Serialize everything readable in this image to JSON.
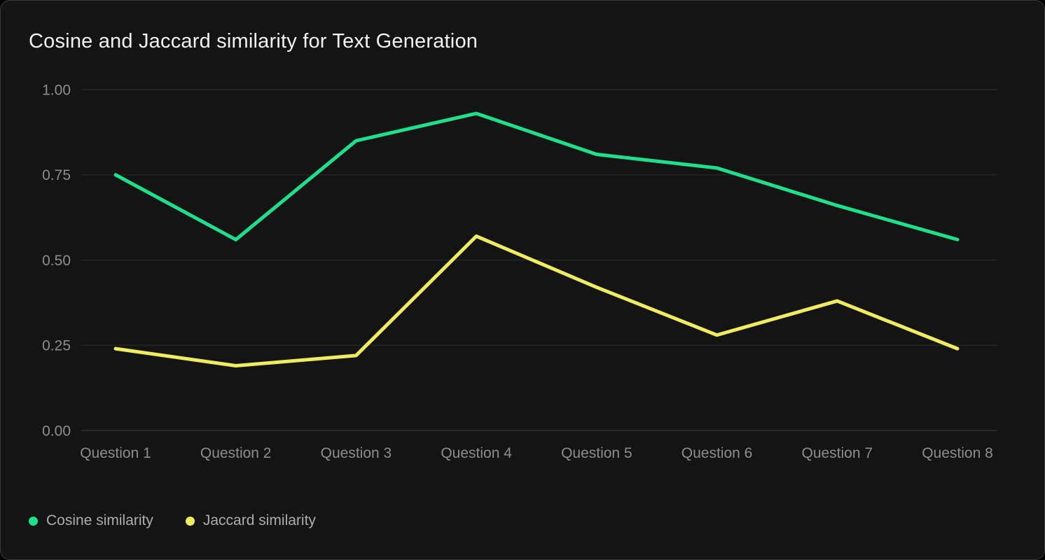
{
  "theme": {
    "page_background": "#000000",
    "card_background": "#141414",
    "card_border": "#3a3a3a",
    "title_color": "#f2f2f2",
    "axis_label_color": "#8d8d8d",
    "gridline_color": "#2b2b2b",
    "baseline_color": "#3f3f3f",
    "legend_text_color": "#adadad"
  },
  "chart_data": {
    "type": "line",
    "title": "Cosine and Jaccard similarity for Text Generation",
    "xlabel": "",
    "ylabel": "",
    "categories": [
      "Question 1",
      "Question 2",
      "Question 3",
      "Question 4",
      "Question 5",
      "Question 6",
      "Question 7",
      "Question 8"
    ],
    "series": [
      {
        "name": "Cosine similarity",
        "color": "#1ee08c",
        "values": [
          0.75,
          0.56,
          0.85,
          0.93,
          0.81,
          0.77,
          0.66,
          0.56
        ]
      },
      {
        "name": "Jaccard similarity",
        "color": "#f0ec60",
        "values": [
          0.24,
          0.19,
          0.22,
          0.57,
          0.42,
          0.28,
          0.38,
          0.24
        ]
      }
    ],
    "ylim": [
      0.0,
      1.0
    ],
    "yticks": [
      {
        "value": 1.0,
        "label": "1.00"
      },
      {
        "value": 0.75,
        "label": "0.75"
      },
      {
        "value": 0.5,
        "label": "0.50"
      },
      {
        "value": 0.25,
        "label": "0.25"
      },
      {
        "value": 0.0,
        "label": "0.00"
      }
    ],
    "grid": "horizontal",
    "legend_position": "bottom-left",
    "markers": "none"
  }
}
